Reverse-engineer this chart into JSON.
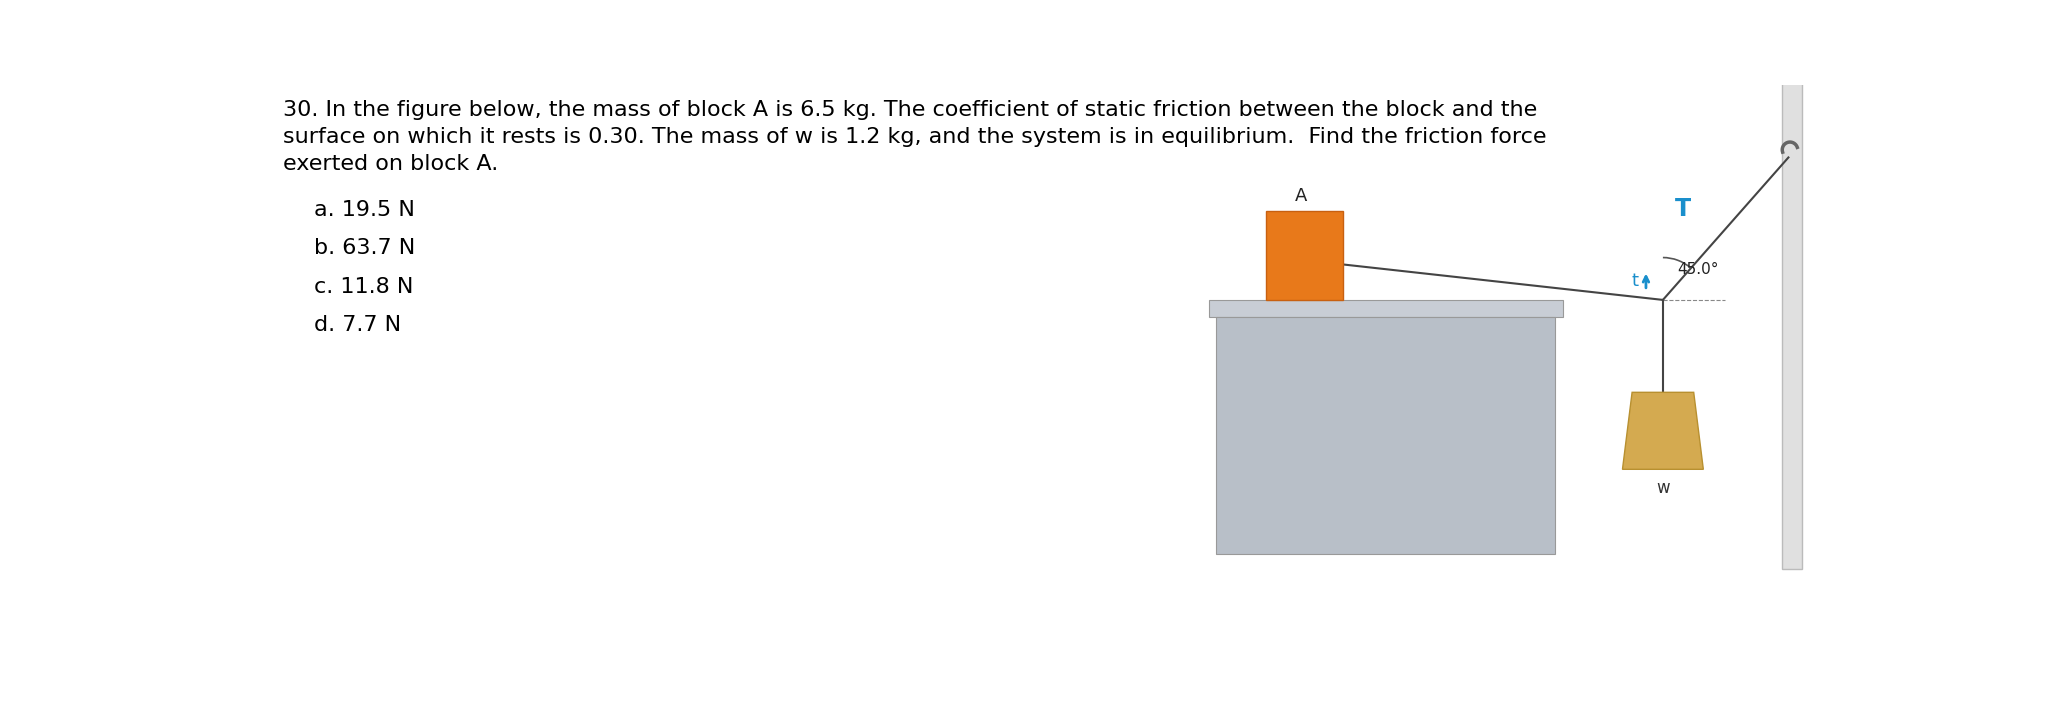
{
  "title_line1": "30. In the figure below, the mass of block A is 6.5 kg. The coefficient of static friction between the block and the",
  "title_line2": "surface on which it rests is 0.30. The mass of w is 1.2 kg, and the system is in equilibrium.  Find the friction force",
  "title_line3": "exerted on block A.",
  "choices": [
    "a. 19.5 N",
    "b. 63.7 N",
    "c. 11.8 N",
    "d. 7.7 N"
  ],
  "bg_color": "#ffffff",
  "text_color": "#000000",
  "title_fontsize": 16,
  "choices_fontsize": 16,
  "diagram": {
    "table_body_color": "#b8bfc8",
    "table_top_color": "#c8cdd5",
    "table_edge_color": "#999999",
    "block_A_color": "#e8791a",
    "block_A_edge": "#c86010",
    "weight_color": "#d4aa50",
    "weight_edge": "#b89030",
    "rope_color": "#444444",
    "wall_color": "#e0e0e0",
    "wall_edge_color": "#bbbbbb",
    "hook_color": "#666666",
    "angle_label": "45.0°",
    "T_label": "T",
    "t_label": "t",
    "A_label": "A",
    "w_label": "w"
  }
}
